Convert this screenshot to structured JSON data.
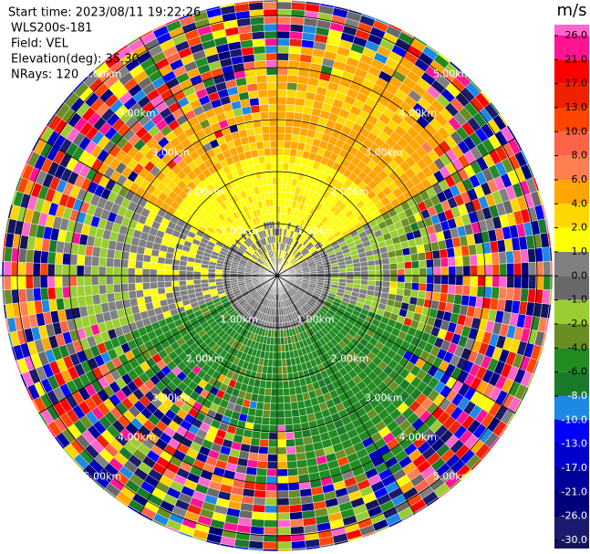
{
  "header": {
    "lines": [
      "Start time: 2023/08/11 19:22:26",
      "WLS200s-181",
      "Field: VEL",
      "Elevation(deg): 35.30",
      "NRays: 120"
    ]
  },
  "range_rings": [
    "1.00km",
    "2.00km",
    "3.00km",
    "4.00km",
    "5.00km"
  ],
  "colorbar": {
    "unit": "m/s",
    "ticks": [
      {
        "value": 26,
        "label": "26.0"
      },
      {
        "value": 21,
        "label": "21.0"
      },
      {
        "value": 17,
        "label": "17.0"
      },
      {
        "value": 13,
        "label": "13.0"
      },
      {
        "value": 10,
        "label": "10.0"
      },
      {
        "value": 8,
        "label": "8.0"
      },
      {
        "value": 6,
        "label": "6.0"
      },
      {
        "value": 4,
        "label": "4.0"
      },
      {
        "value": 2,
        "label": "2.0"
      },
      {
        "value": 1,
        "label": "1.0"
      },
      {
        "value": 0,
        "label": "0.0"
      },
      {
        "value": -1,
        "label": "-1.0"
      },
      {
        "value": -2,
        "label": "-2.0"
      },
      {
        "value": -4,
        "label": "-4.0"
      },
      {
        "value": -6,
        "label": "-6.0"
      },
      {
        "value": -8,
        "label": "-8.0"
      },
      {
        "value": -10,
        "label": "-10.0"
      },
      {
        "value": -13,
        "label": "-13.0"
      },
      {
        "value": -17,
        "label": "-17.0"
      },
      {
        "value": -21,
        "label": "-21.0"
      },
      {
        "value": -26,
        "label": "-26.0"
      },
      {
        "value": -30,
        "label": "-30.0"
      }
    ],
    "colors": [
      "#ff66cc",
      "#ff1493",
      "#ff0000",
      "#ee2200",
      "#ff4500",
      "#ff6347",
      "#ff7f50",
      "#ffa500",
      "#ffd700",
      "#ffff00",
      "#808080",
      "#696969",
      "#9acd32",
      "#6b8e23",
      "#228b22",
      "#1a7a2a",
      "#1e88e5",
      "#0000ff",
      "#0000cd",
      "#00009b",
      "#00007a",
      "#1a1a6e",
      "#14145a"
    ]
  }
}
